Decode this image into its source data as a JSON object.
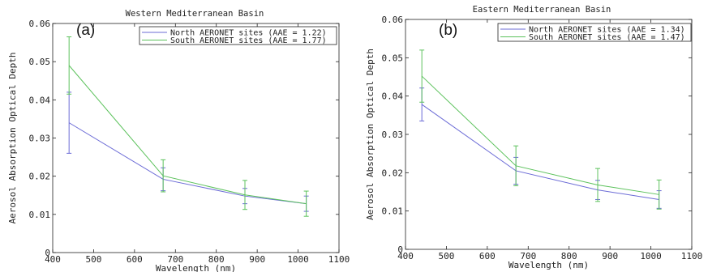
{
  "chart_data": [
    {
      "type": "line",
      "panel_label": "(a)",
      "title": "Western Mediterranean Basin",
      "xlabel": "Wavelength (nm)",
      "ylabel": "Aerosol Absorption Optical Depth",
      "xlim": [
        400,
        1100
      ],
      "ylim": [
        0,
        0.06
      ],
      "xticks": [
        "400",
        "500",
        "600",
        "700",
        "800",
        "900",
        "1000",
        "1100"
      ],
      "yticks": [
        "0",
        "0.01",
        "0.02",
        "0.03",
        "0.04",
        "0.05",
        "0.06"
      ],
      "legend_position": "top-right",
      "x": [
        440,
        670,
        870,
        1020
      ],
      "series": [
        {
          "name": "North AERONET sites (AAE = 1.22)",
          "color": "#6b6bd6",
          "values": [
            0.034,
            0.0192,
            0.0148,
            0.0128
          ],
          "err": [
            0.008,
            0.003,
            0.002,
            0.002
          ]
        },
        {
          "name": "South AERONET sites (AAE = 1.77)",
          "color": "#5cc25c",
          "values": [
            0.049,
            0.0201,
            0.0151,
            0.0128
          ],
          "err": [
            0.0075,
            0.0042,
            0.0038,
            0.0033
          ]
        }
      ]
    },
    {
      "type": "line",
      "panel_label": "(b)",
      "title": "Eastern Mediterranean Basin",
      "xlabel": "Wavelength (nm)",
      "ylabel": "Aerosol Absorption Optical Depth",
      "xlim": [
        400,
        1100
      ],
      "ylim": [
        0,
        0.06
      ],
      "xticks": [
        "400",
        "500",
        "600",
        "700",
        "800",
        "900",
        "1000",
        "1100"
      ],
      "yticks": [
        "0",
        "0.01",
        "0.02",
        "0.03",
        "0.04",
        "0.05",
        "0.06"
      ],
      "legend_position": "top-right",
      "x": [
        440,
        670,
        870,
        1020
      ],
      "series": [
        {
          "name": "North AERONET sites (AAE = 1.34)",
          "color": "#6b6bd6",
          "values": [
            0.0378,
            0.0205,
            0.0155,
            0.013
          ],
          "err": [
            0.0043,
            0.0035,
            0.0025,
            0.0023
          ]
        },
        {
          "name": "South AERONET sites (AAE = 1.47)",
          "color": "#5cc25c",
          "values": [
            0.0452,
            0.0218,
            0.0168,
            0.0143
          ],
          "err": [
            0.0068,
            0.0052,
            0.0043,
            0.0038
          ]
        }
      ]
    }
  ]
}
